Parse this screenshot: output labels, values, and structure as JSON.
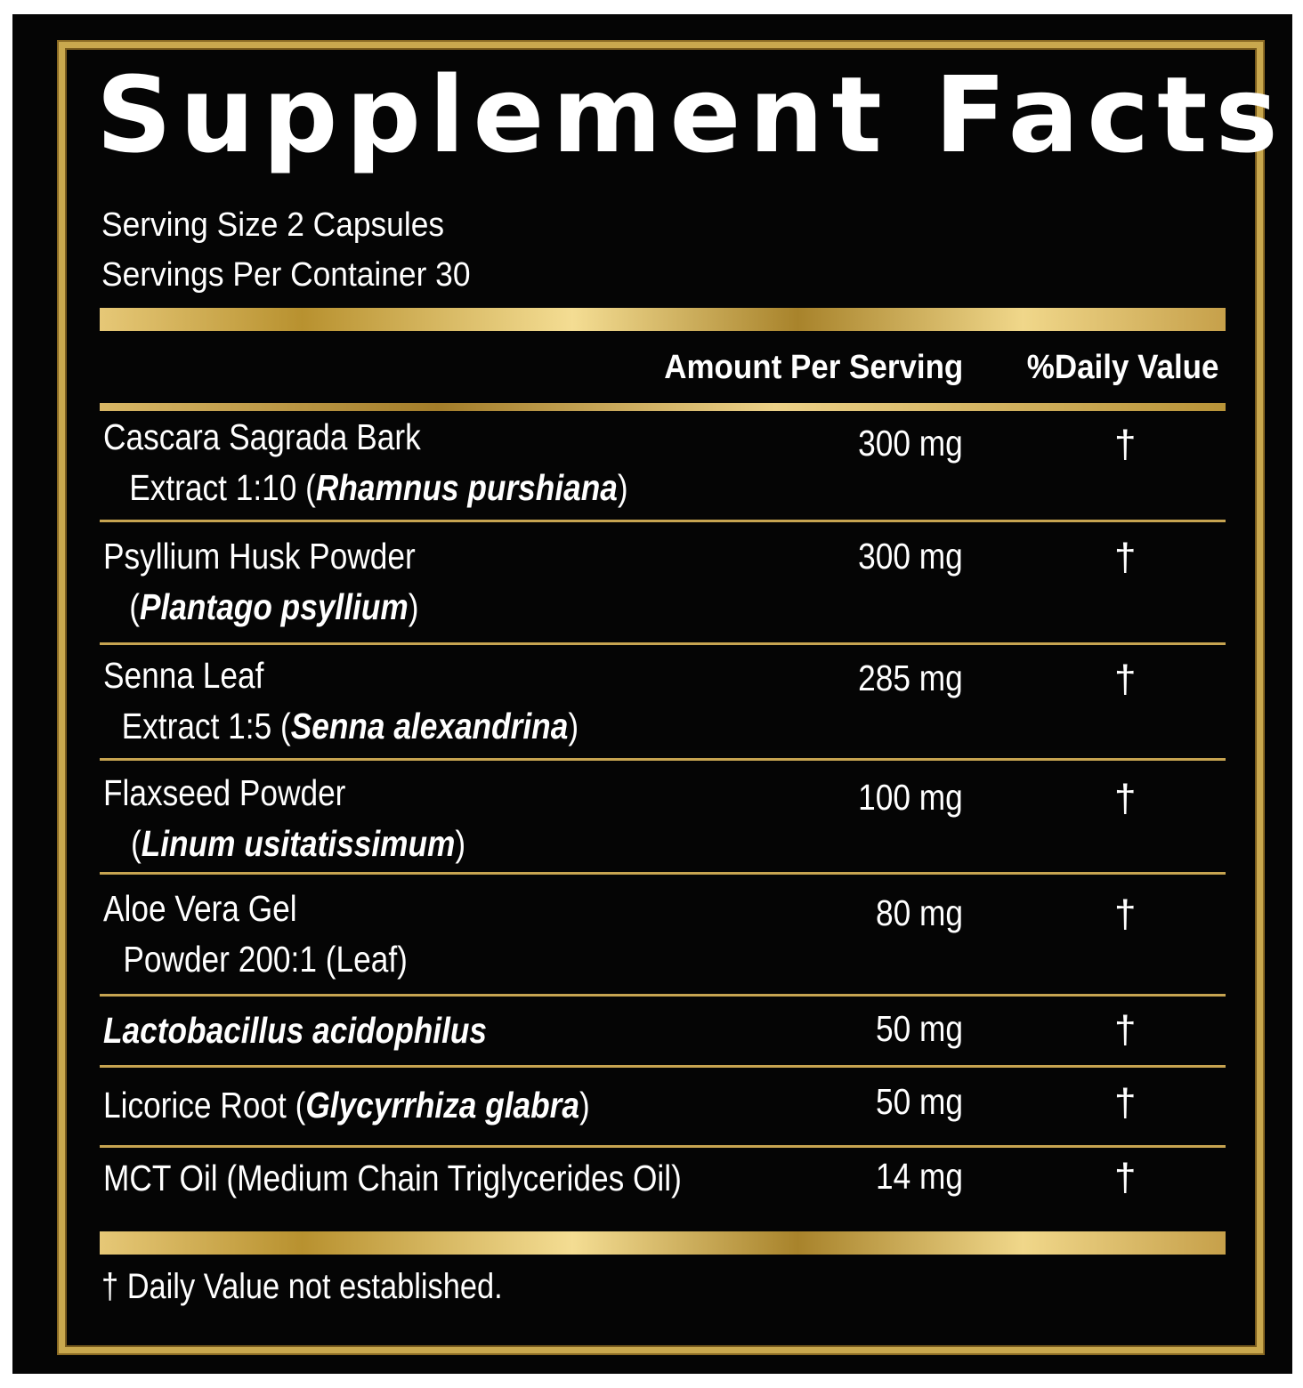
{
  "label": {
    "title": "Supplement Facts",
    "serving_size": "Serving Size 2 Capsules",
    "servings_per_container": "Servings Per Container 30",
    "header_amount": "Amount Per Serving",
    "header_dv": "%Daily Value",
    "footnote": "† Daily Value not established."
  },
  "ingredients": [
    {
      "line1": "Cascara Sagrada Bark",
      "line2_prefix": "Extract 1:10 (",
      "latin": "Rhamnus purshiana",
      "line2_suffix": ")",
      "amount": "300 mg",
      "dv": "†"
    },
    {
      "line1": "Psyllium Husk Powder",
      "line2_prefix": "(",
      "latin": "Plantago psyllium",
      "line2_suffix": ")",
      "amount": "300 mg",
      "dv": "†"
    },
    {
      "line1": "Senna Leaf",
      "line2_prefix": "Extract 1:5 (",
      "latin": "Senna alexandrina",
      "line2_suffix": ")",
      "amount": "285 mg",
      "dv": "†"
    },
    {
      "line1": "Flaxseed Powder",
      "line2_prefix": "(",
      "latin": "Linum usitatissimum",
      "line2_suffix": ")",
      "amount": "100 mg",
      "dv": "†"
    },
    {
      "line1": "Aloe Vera Gel",
      "line2_prefix": "Powder 200:1 (Leaf)",
      "amount": "80 mg",
      "dv": "†"
    },
    {
      "latin_name": "Lactobacillus acidophilus",
      "amount": "50 mg",
      "dv": "†"
    },
    {
      "prefix": "Licorice Root (",
      "latin": "Glycyrrhiza glabra",
      "suffix": ")",
      "amount": "50 mg",
      "dv": "†"
    },
    {
      "name": "MCT Oil (Medium Chain Triglycerides Oil)",
      "amount": "14 mg",
      "dv": "†"
    }
  ],
  "colors": {
    "background": "#050505",
    "gold": "#c9a84e",
    "text": "#ffffff"
  }
}
